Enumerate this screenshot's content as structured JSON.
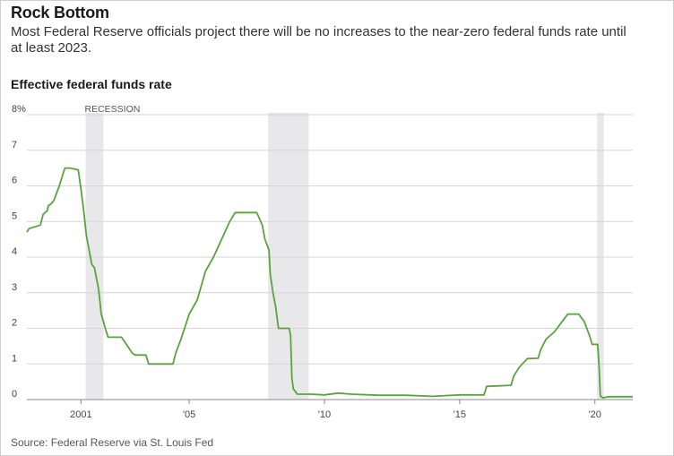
{
  "header": {
    "title": "Rock Bottom",
    "subtitle": "Most Federal Reserve officials project there will be no increases to the near-zero federal funds rate until at least 2023."
  },
  "chart_title": "Effective federal funds rate",
  "source": "Source: Federal Reserve via St. Louis Fed",
  "recession_label": "RECESSION",
  "colors": {
    "line": "#5aa33c",
    "recession": "#e8e8ea",
    "grid": "#d6d6d6"
  },
  "chart_data": {
    "type": "line",
    "title": "Effective federal funds rate",
    "xlabel": "",
    "ylabel": "",
    "xlim": [
      1999.0,
      2021.4
    ],
    "ylim": [
      0,
      8
    ],
    "y_ticks": [
      0,
      1,
      2,
      3,
      4,
      5,
      6,
      7,
      8
    ],
    "y_tick_labels": [
      "0",
      "1",
      "2",
      "3",
      "4",
      "5",
      "6",
      "7",
      "8%"
    ],
    "x_ticks": [
      2001,
      2005,
      2010,
      2015,
      2020
    ],
    "x_tick_labels": [
      "2001",
      "'05",
      "'10",
      "'15",
      "'20"
    ],
    "grid": true,
    "recessions": [
      [
        2001.17,
        2001.83
      ],
      [
        2007.92,
        2009.42
      ],
      [
        2020.08,
        2020.33
      ]
    ],
    "series": [
      {
        "x": [
          1999.0,
          1999.08,
          1999.5,
          1999.6,
          1999.75,
          1999.8,
          1999.9,
          2000.0,
          2000.2,
          2000.4,
          2000.6,
          2000.9,
          2001.0,
          2001.1,
          2001.2,
          2001.3,
          2001.4,
          2001.5,
          2001.65,
          2001.75,
          2001.9,
          2002.0,
          2002.5,
          2002.9,
          2003.0,
          2003.4,
          2003.5,
          2004.4,
          2004.5,
          2004.7,
          2005.0,
          2005.3,
          2005.6,
          2005.9,
          2006.2,
          2006.5,
          2006.7,
          2007.5,
          2007.7,
          2007.8,
          2007.95,
          2008.0,
          2008.1,
          2008.2,
          2008.3,
          2008.5,
          2008.7,
          2008.75,
          2008.8,
          2008.85,
          2008.95,
          2009.0,
          2009.5,
          2010.0,
          2010.5,
          2011.0,
          2012.0,
          2013.0,
          2014.0,
          2015.0,
          2015.9,
          2016.0,
          2016.9,
          2017.0,
          2017.2,
          2017.5,
          2017.9,
          2018.0,
          2018.2,
          2018.5,
          2018.8,
          2019.0,
          2019.4,
          2019.6,
          2019.8,
          2019.9,
          2020.1,
          2020.15,
          2020.2,
          2020.3,
          2020.5,
          2021.0,
          2021.4
        ],
        "values": [
          4.7,
          4.8,
          4.9,
          5.2,
          5.3,
          5.45,
          5.5,
          5.6,
          6.0,
          6.5,
          6.5,
          6.45,
          5.9,
          5.3,
          4.6,
          4.2,
          3.8,
          3.7,
          3.1,
          2.4,
          2.0,
          1.75,
          1.75,
          1.3,
          1.25,
          1.25,
          1.0,
          1.0,
          1.3,
          1.7,
          2.4,
          2.8,
          3.6,
          4.0,
          4.5,
          5.0,
          5.25,
          5.25,
          4.9,
          4.5,
          4.2,
          3.5,
          3.0,
          2.6,
          2.0,
          2.0,
          2.0,
          1.8,
          0.6,
          0.3,
          0.2,
          0.15,
          0.15,
          0.13,
          0.18,
          0.15,
          0.12,
          0.12,
          0.09,
          0.13,
          0.13,
          0.37,
          0.4,
          0.66,
          0.9,
          1.15,
          1.16,
          1.41,
          1.7,
          1.9,
          2.2,
          2.4,
          2.4,
          2.2,
          1.8,
          1.55,
          1.55,
          1.0,
          0.1,
          0.05,
          0.08,
          0.08,
          0.08
        ]
      }
    ]
  }
}
